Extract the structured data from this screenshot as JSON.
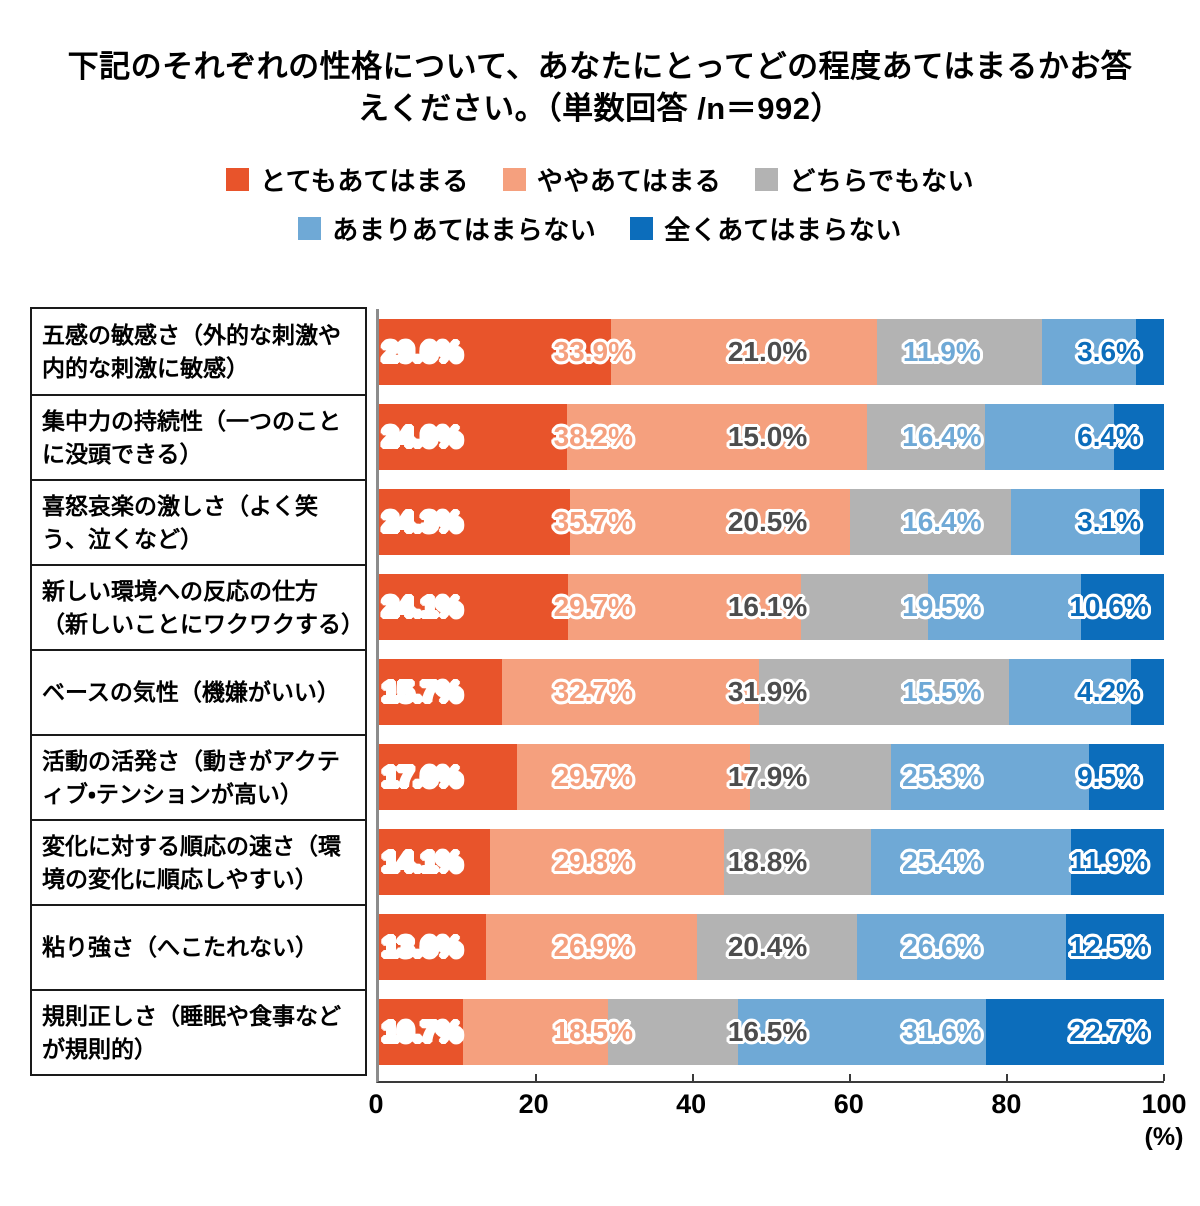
{
  "title": {
    "line1": "下記のそれぞれの性格について、あなたにとってどの程度あてはまるかお答",
    "line2": "えください。（単数回答 /n＝992）"
  },
  "legend": [
    {
      "label": "とてもあてはまる",
      "color": "#E8542B"
    },
    {
      "label": "ややあてはまる",
      "color": "#F5A07E"
    },
    {
      "label": "どちらでもない",
      "color": "#B3B3B3"
    },
    {
      "label": "あまりあてはまらない",
      "color": "#6FA9D6"
    },
    {
      "label": "全くあてはまらない",
      "color": "#0C6DBB"
    }
  ],
  "colors": {
    "series": [
      "#E8542B",
      "#F5A07E",
      "#B3B3B3",
      "#6FA9D6",
      "#0C6DBB"
    ],
    "value_label_text": [
      "#FFFFFF",
      "#F5A07E",
      "#4D4D4D",
      "#6FA9D6",
      "#0C6DBB"
    ],
    "axis_line": "#3a3a3a",
    "spine": "#8c8c8c"
  },
  "chart_data": {
    "type": "bar",
    "orientation": "horizontal-stacked",
    "title": "下記のそれぞれの性格について、あなたにとってどの程度あてはまるかお答えください。（単数回答 /n＝992）",
    "n": 992,
    "unit_label": "(%)",
    "xlim": [
      0,
      100
    ],
    "x_ticks": [
      0,
      20,
      40,
      60,
      80,
      100
    ],
    "grid": false,
    "legend_position": "top",
    "categories": [
      "五感の敏感さ（外的な刺激や内的な刺激に敏感）",
      "集中力の持続性（一つのことに没頭できる）",
      "喜怒哀楽の激しさ（よく笑う、泣くなど）",
      "新しい環境への反応の仕方（新しいことにワクワクする）",
      "ベースの気性（機嫌がいい）",
      "活動の活発さ（動きがアクティブ・テンションが高い）",
      "変化に対する順応の速さ（環境の変化に順応しやすい）",
      "粘り強さ（へこたれない）",
      "規則正しさ（睡眠や食事などが規則的）"
    ],
    "series": [
      {
        "name": "とてもあてはまる",
        "color": "#E8542B",
        "values": [
          29.6,
          24.0,
          24.3,
          24.1,
          15.7,
          17.6,
          14.1,
          13.6,
          10.7
        ]
      },
      {
        "name": "ややあてはまる",
        "color": "#F5A07E",
        "values": [
          33.9,
          38.2,
          35.7,
          29.7,
          32.7,
          29.7,
          29.8,
          26.9,
          18.5
        ]
      },
      {
        "name": "どちらでもない",
        "color": "#B3B3B3",
        "values": [
          21.0,
          15.0,
          20.5,
          16.1,
          31.9,
          17.9,
          18.8,
          20.4,
          16.5
        ]
      },
      {
        "name": "あまりあてはまらない",
        "color": "#6FA9D6",
        "values": [
          11.9,
          16.4,
          16.4,
          19.5,
          15.5,
          25.3,
          25.4,
          26.6,
          31.6
        ]
      },
      {
        "name": "全くあてはまらない",
        "color": "#0C6DBB",
        "values": [
          3.6,
          6.4,
          3.1,
          10.6,
          4.2,
          9.5,
          11.9,
          12.5,
          22.7
        ]
      }
    ]
  }
}
